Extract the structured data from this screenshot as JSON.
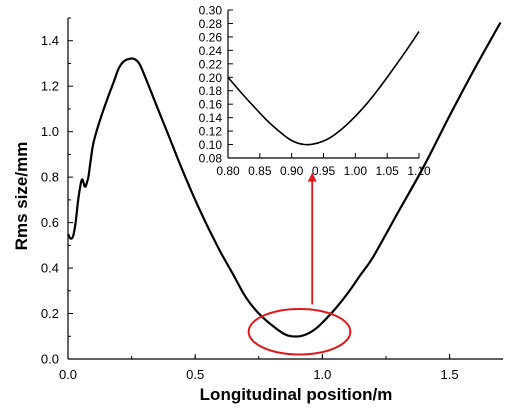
{
  "colors": {
    "curve": "#000000",
    "annotation": "#e0191c",
    "axis": "#000000"
  },
  "chart_data": [
    {
      "type": "line",
      "title": "",
      "xlabel": "Longitudinal position/m",
      "ylabel": "Rms size/mm",
      "xlim": [
        0.0,
        1.71
      ],
      "ylim": [
        0.0,
        1.5
      ],
      "xticks": [
        "0.0",
        "0.5",
        "1.0",
        "1.5"
      ],
      "yticks": [
        "0.0",
        "0.2",
        "0.4",
        "0.6",
        "0.8",
        "1.0",
        "1.2",
        "1.4"
      ],
      "grid": false,
      "series": [
        {
          "x": [
            0.0,
            0.01,
            0.02,
            0.03,
            0.04,
            0.05,
            0.055,
            0.06,
            0.065,
            0.07,
            0.075,
            0.08,
            0.09,
            0.1,
            0.12,
            0.15,
            0.18,
            0.2,
            0.22,
            0.24,
            0.26,
            0.28,
            0.3,
            0.35,
            0.4,
            0.45,
            0.5,
            0.55,
            0.6,
            0.65,
            0.7,
            0.75,
            0.8,
            0.85,
            0.88,
            0.91,
            0.94,
            0.97,
            1.0,
            1.05,
            1.1,
            1.15,
            1.2,
            1.3,
            1.4,
            1.5,
            1.6,
            1.7
          ],
          "y": [
            0.55,
            0.53,
            0.54,
            0.6,
            0.7,
            0.77,
            0.79,
            0.78,
            0.76,
            0.76,
            0.78,
            0.8,
            0.88,
            0.95,
            1.03,
            1.13,
            1.22,
            1.28,
            1.31,
            1.32,
            1.32,
            1.3,
            1.25,
            1.11,
            0.97,
            0.83,
            0.7,
            0.58,
            0.47,
            0.37,
            0.27,
            0.2,
            0.15,
            0.11,
            0.1,
            0.1,
            0.11,
            0.13,
            0.16,
            0.22,
            0.29,
            0.37,
            0.45,
            0.65,
            0.85,
            1.07,
            1.28,
            1.48
          ]
        }
      ],
      "annotations": [
        {
          "type": "ellipse",
          "cx": 0.91,
          "cy": 0.12,
          "rx": 0.2,
          "ry": 0.1
        },
        {
          "type": "arrow",
          "x": 0.96,
          "y_from": 0.24,
          "y_to": 0.82
        }
      ]
    },
    {
      "type": "line",
      "title": "",
      "xlabel": "",
      "ylabel": "",
      "xlim": [
        0.8,
        1.1
      ],
      "ylim": [
        0.08,
        0.3
      ],
      "xticks": [
        "0.80",
        "0.85",
        "0.90",
        "0.95",
        "1.00",
        "1.05",
        "1.10"
      ],
      "yticks": [
        "0.08",
        "0.10",
        "0.12",
        "0.14",
        "0.16",
        "0.18",
        "0.20",
        "0.22",
        "0.24",
        "0.26",
        "0.28",
        "0.30"
      ],
      "grid": false,
      "series": [
        {
          "x": [
            0.8,
            0.82,
            0.84,
            0.86,
            0.88,
            0.9,
            0.92,
            0.94,
            0.96,
            0.98,
            1.0,
            1.02,
            1.04,
            1.06,
            1.08,
            1.1
          ],
          "y": [
            0.2,
            0.178,
            0.157,
            0.137,
            0.12,
            0.106,
            0.1,
            0.102,
            0.11,
            0.124,
            0.142,
            0.163,
            0.187,
            0.213,
            0.24,
            0.268
          ]
        }
      ]
    }
  ]
}
